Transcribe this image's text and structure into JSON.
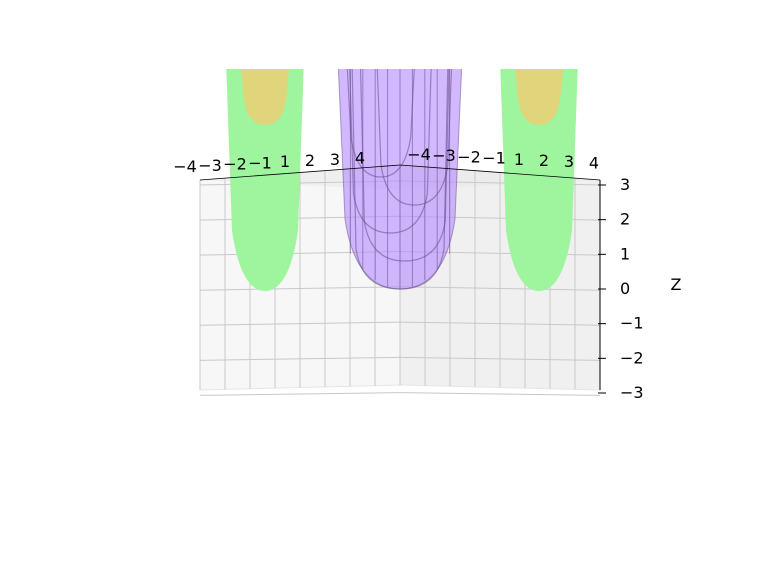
{
  "chart_data": {
    "type": "surface3d",
    "title": "",
    "xlabel": "",
    "ylabel": "",
    "zlabel": "Z",
    "x_ticks": [
      "−4",
      "−3",
      "−2",
      "−1",
      "1",
      "2",
      "3",
      "4"
    ],
    "y_ticks": [
      "−4",
      "−3",
      "−2",
      "−1",
      "1",
      "2",
      "3",
      "4"
    ],
    "z_ticks": [
      "−3",
      "−2",
      "−1",
      "0",
      "1",
      "2",
      "3"
    ],
    "zlim": [
      -3,
      3
    ],
    "grid": true,
    "series": [
      {
        "style": "translucent wireframe",
        "color": "#b388ff",
        "min_z": 0,
        "u_profile_offsets": [
          0,
          0.8,
          1.6,
          2.4,
          3.2
        ]
      },
      {
        "style": "solid",
        "color": "#9ef59e",
        "cap_color": "#e0d57a",
        "min_z": 0,
        "position": "left"
      },
      {
        "style": "solid",
        "color": "#9ef59e",
        "cap_color": "#e0d57a",
        "min_z": 0,
        "position": "right"
      }
    ]
  }
}
